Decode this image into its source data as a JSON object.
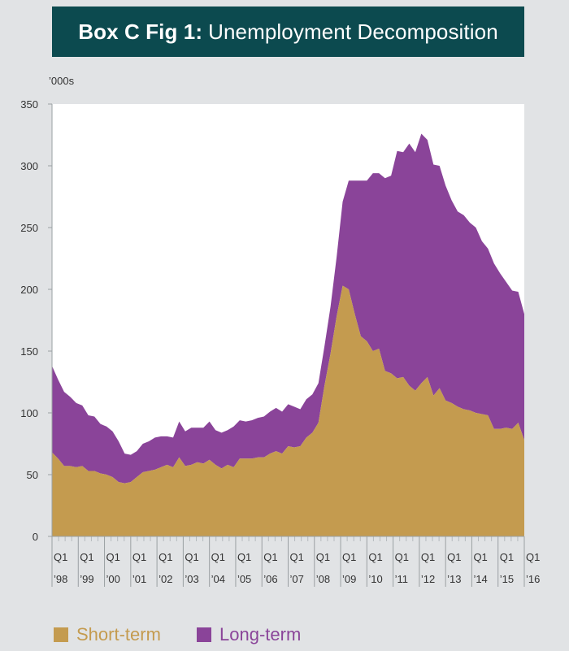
{
  "chart_data": {
    "type": "area",
    "stacked": true,
    "title_prefix": "Box C Fig 1:",
    "title": "Unemployment Decomposition",
    "unit_label": "’000s",
    "ylim": [
      0,
      350
    ],
    "yticks": [
      0,
      50,
      100,
      150,
      200,
      250,
      300,
      350
    ],
    "x_start_year": 1998,
    "x_end_year": 2016,
    "x_tick_labels": [
      {
        "q": "Q1",
        "y": "’98"
      },
      {
        "q": "Q1",
        "y": "’99"
      },
      {
        "q": "Q1",
        "y": "’00"
      },
      {
        "q": "Q1",
        "y": "’01"
      },
      {
        "q": "Q1",
        "y": "’02"
      },
      {
        "q": "Q1",
        "y": "’03"
      },
      {
        "q": "Q1",
        "y": "’04"
      },
      {
        "q": "Q1",
        "y": "’05"
      },
      {
        "q": "Q1",
        "y": "’06"
      },
      {
        "q": "Q1",
        "y": "’07"
      },
      {
        "q": "Q1",
        "y": "’08"
      },
      {
        "q": "Q1",
        "y": "’09"
      },
      {
        "q": "Q1",
        "y": "’10"
      },
      {
        "q": "Q1",
        "y": "’11"
      },
      {
        "q": "Q1",
        "y": "’12"
      },
      {
        "q": "Q1",
        "y": "’13"
      },
      {
        "q": "Q1",
        "y": "’14"
      },
      {
        "q": "Q1",
        "y": "’15"
      },
      {
        "q": "Q1",
        "y": "’16"
      }
    ],
    "grid": false,
    "legend_position": "bottom",
    "series": [
      {
        "name": "Short-term",
        "color": "#c49b4f",
        "values": [
          68,
          63,
          57,
          57,
          56,
          57,
          53,
          53,
          51,
          50,
          48,
          44,
          43,
          44,
          48,
          52,
          53,
          54,
          56,
          58,
          56,
          64,
          57,
          58,
          60,
          59,
          62,
          58,
          55,
          58,
          56,
          63,
          63,
          63,
          64,
          64,
          67,
          69,
          67,
          73,
          72,
          73,
          80,
          84,
          92,
          122,
          148,
          178,
          203,
          200,
          180,
          162,
          158,
          150,
          152,
          134,
          132,
          128,
          129,
          122,
          118,
          124,
          129,
          114,
          120,
          110,
          108,
          105,
          103,
          102,
          100,
          99,
          98,
          87,
          87,
          88,
          87,
          92,
          78
        ],
        "long_values": [
          70,
          64,
          60,
          56,
          52,
          49,
          45,
          44,
          40,
          39,
          37,
          33,
          24,
          22,
          21,
          23,
          24,
          26,
          25,
          23,
          24,
          29,
          28,
          30,
          28,
          29,
          31,
          28,
          29,
          28,
          33,
          31,
          30,
          31,
          32,
          33,
          34,
          35,
          34,
          34,
          33,
          30,
          31,
          31,
          32,
          32,
          38,
          48,
          68,
          88,
          108,
          126,
          130,
          144,
          142,
          156,
          160,
          184,
          182,
          196,
          193,
          202,
          192,
          187,
          180,
          174,
          164,
          158,
          157,
          152,
          150,
          140,
          135,
          134,
          126,
          118,
          112,
          106,
          102
        ]
      },
      {
        "name": "Long-term",
        "color": "#8a4499"
      }
    ]
  }
}
